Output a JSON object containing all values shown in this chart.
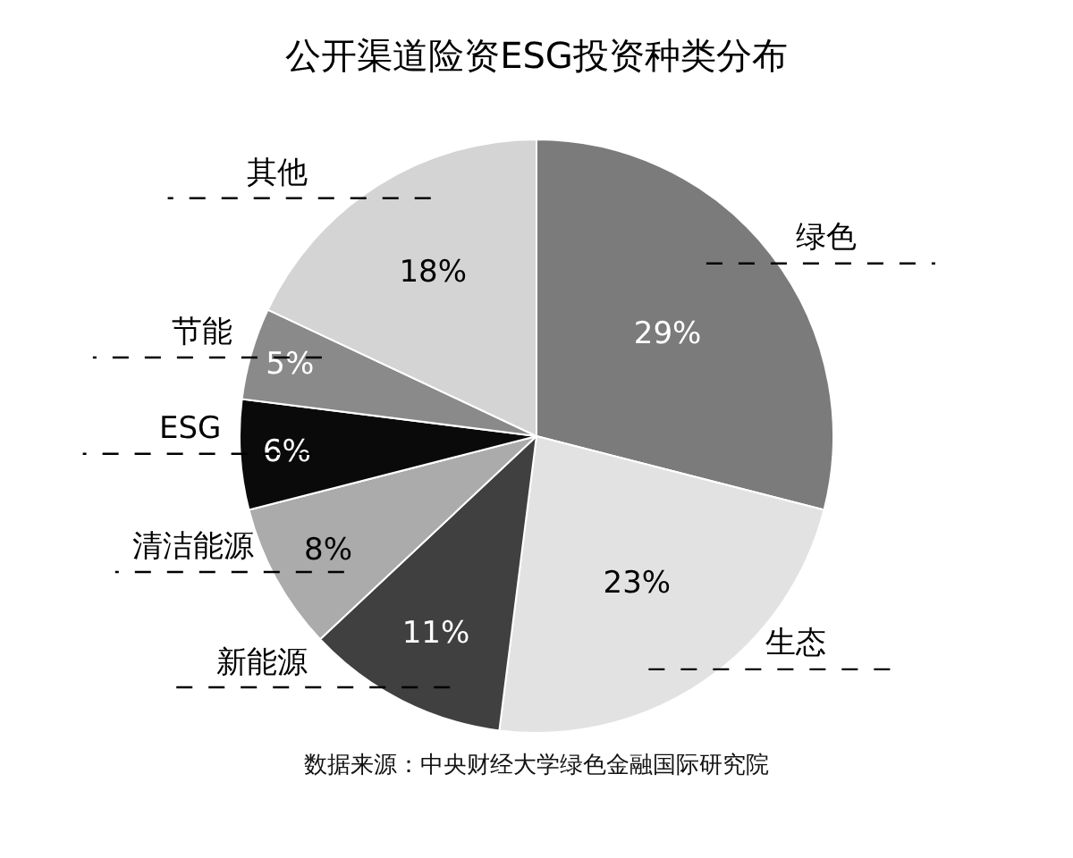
{
  "chart_data": {
    "type": "pie",
    "title": "公开渠道险资ESG投资种类分布",
    "categories": [
      "绿色",
      "生态",
      "新能源",
      "清洁能源",
      "ESG",
      "节能",
      "其他"
    ],
    "values": [
      29,
      23,
      11,
      8,
      6,
      5,
      18
    ],
    "colors": [
      "#7b7b7b",
      "#e2e2e2",
      "#404040",
      "#ababab",
      "#0a0a0a",
      "#8a8a8a",
      "#d4d4d4"
    ],
    "value_labels": [
      "29%",
      "23%",
      "11%",
      "8%",
      "6%",
      "5%",
      "18%"
    ],
    "annotations": [
      "数据来源：中央财经大学绿色金融国际研究院"
    ]
  }
}
